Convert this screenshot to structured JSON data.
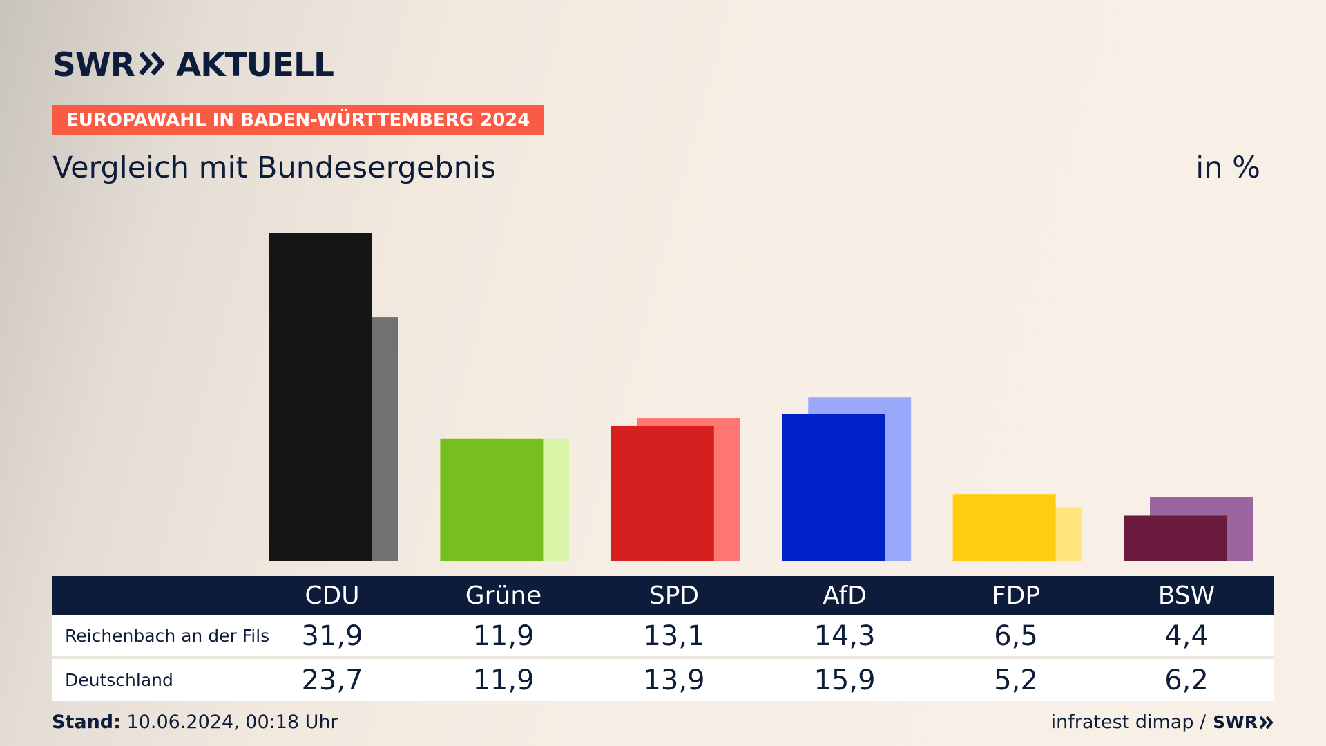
{
  "header": {
    "logo_left": "SWR",
    "logo_right": "AKTUELL",
    "badge": "EUROPAWAHL IN BADEN-WÜRTTEMBERG 2024",
    "subtitle": "Vergleich mit Bundesergebnis",
    "unit": "in %"
  },
  "colors": {
    "navy": "#0d1c3a",
    "badge": "#fb5a45"
  },
  "chart_data": {
    "type": "bar",
    "title": "Vergleich mit Bundesergebnis",
    "ylabel": "in %",
    "ylim": [
      0,
      32
    ],
    "categories": [
      "CDU",
      "Grüne",
      "SPD",
      "AfD",
      "FDP",
      "BSW"
    ],
    "series": [
      {
        "name": "Reichenbach an der Fils",
        "values": [
          31.9,
          11.9,
          13.1,
          14.3,
          6.5,
          4.4
        ],
        "colors": [
          "#151515",
          "#78be1e",
          "#d62020",
          "#0021c7",
          "#ffcc0f",
          "#6b1b3d"
        ]
      },
      {
        "name": "Deutschland",
        "values": [
          23.7,
          11.9,
          13.9,
          15.9,
          5.2,
          6.2
        ],
        "colors": [
          "#717171",
          "#d8f5a8",
          "#ff7672",
          "#9aa8fc",
          "#ffe57a",
          "#9b669f"
        ]
      }
    ]
  },
  "table": {
    "headers": [
      "CDU",
      "Grüne",
      "SPD",
      "AfD",
      "FDP",
      "BSW"
    ],
    "rows": [
      {
        "label": "Reichenbach an der Fils",
        "values": [
          "31,9",
          "11,9",
          "13,1",
          "14,3",
          "6,5",
          "4,4"
        ]
      },
      {
        "label": "Deutschland",
        "values": [
          "23,7",
          "11,9",
          "13,9",
          "15,9",
          "5,2",
          "6,2"
        ]
      }
    ]
  },
  "footer": {
    "stand_label": "Stand:",
    "stand_value": "10.06.2024, 00:18 Uhr",
    "source": "infratest dimap /",
    "source_logo": "SWR"
  }
}
